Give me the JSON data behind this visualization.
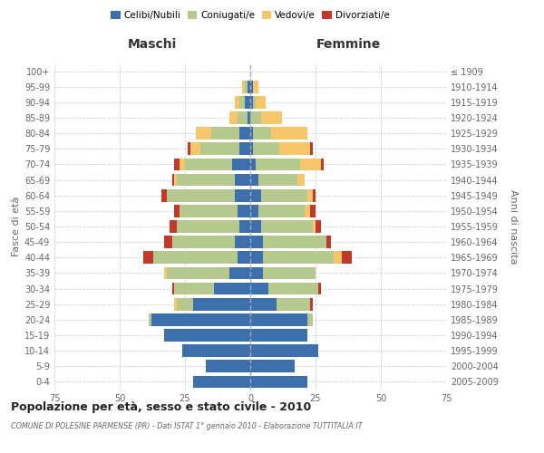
{
  "age_groups": [
    "0-4",
    "5-9",
    "10-14",
    "15-19",
    "20-24",
    "25-29",
    "30-34",
    "35-39",
    "40-44",
    "45-49",
    "50-54",
    "55-59",
    "60-64",
    "65-69",
    "70-74",
    "75-79",
    "80-84",
    "85-89",
    "90-94",
    "95-99",
    "100+"
  ],
  "birth_years": [
    "2005-2009",
    "2000-2004",
    "1995-1999",
    "1990-1994",
    "1985-1989",
    "1980-1984",
    "1975-1979",
    "1970-1974",
    "1965-1969",
    "1960-1964",
    "1955-1959",
    "1950-1954",
    "1945-1949",
    "1940-1944",
    "1935-1939",
    "1930-1934",
    "1925-1929",
    "1920-1924",
    "1915-1919",
    "1910-1914",
    "≤ 1909"
  ],
  "males": {
    "celibi": [
      22,
      17,
      26,
      33,
      38,
      22,
      14,
      8,
      5,
      6,
      4,
      5,
      6,
      6,
      7,
      4,
      4,
      1,
      2,
      1,
      0
    ],
    "coniugati": [
      0,
      0,
      0,
      0,
      1,
      6,
      15,
      24,
      32,
      24,
      24,
      22,
      26,
      22,
      18,
      15,
      11,
      4,
      2,
      1,
      0
    ],
    "vedovi": [
      0,
      0,
      0,
      0,
      0,
      1,
      0,
      1,
      0,
      0,
      0,
      0,
      0,
      1,
      2,
      4,
      6,
      3,
      2,
      1,
      0
    ],
    "divorziati": [
      0,
      0,
      0,
      0,
      0,
      0,
      1,
      0,
      4,
      3,
      3,
      2,
      2,
      1,
      2,
      1,
      0,
      0,
      0,
      0,
      0
    ]
  },
  "females": {
    "nubili": [
      22,
      17,
      26,
      22,
      22,
      10,
      7,
      5,
      5,
      5,
      4,
      3,
      4,
      3,
      2,
      1,
      1,
      0,
      1,
      1,
      0
    ],
    "coniugate": [
      0,
      0,
      0,
      0,
      2,
      13,
      19,
      20,
      27,
      24,
      20,
      18,
      18,
      15,
      17,
      10,
      7,
      4,
      1,
      0,
      0
    ],
    "vedove": [
      0,
      0,
      0,
      0,
      0,
      0,
      0,
      0,
      3,
      0,
      1,
      2,
      2,
      3,
      8,
      12,
      14,
      8,
      4,
      2,
      0
    ],
    "divorziate": [
      0,
      0,
      0,
      0,
      0,
      1,
      1,
      0,
      4,
      2,
      2,
      2,
      1,
      0,
      1,
      1,
      0,
      0,
      0,
      0,
      0
    ]
  },
  "colors": {
    "celibi": "#3d6fad",
    "coniugati": "#b5c98e",
    "vedovi": "#f5c76a",
    "divorziati": "#c0392b"
  },
  "xlim": 75,
  "title": "Popolazione per età, sesso e stato civile - 2010",
  "subtitle": "COMUNE DI POLESINE PARMENSE (PR) - Dati ISTAT 1° gennaio 2010 - Elaborazione TUTTITALIA.IT",
  "xlabel_left": "Maschi",
  "xlabel_right": "Femmine",
  "ylabel_left": "Fasce di età",
  "ylabel_right": "Anni di nascita",
  "legend_labels": [
    "Celibi/Nubili",
    "Coniugati/e",
    "Vedovi/e",
    "Divorziati/e"
  ],
  "bg_color": "#ffffff",
  "grid_color": "#cccccc"
}
